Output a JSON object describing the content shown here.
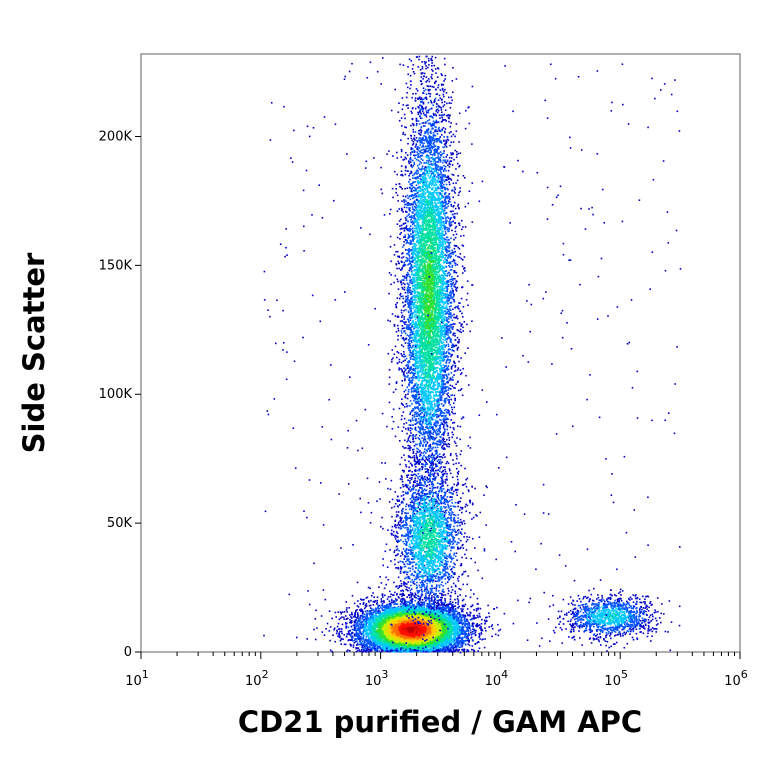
{
  "chart_data": {
    "type": "scatter",
    "subtype": "flow-cytometry-density-dot-plot",
    "xlabel": "CD21 purified / GAM APC",
    "ylabel": "Side Scatter",
    "x_scale": "log",
    "xlim": [
      10,
      1000000
    ],
    "ylim": [
      0,
      232000
    ],
    "x_ticks": [
      {
        "value": 10,
        "base": "10",
        "exp": "1"
      },
      {
        "value": 100,
        "base": "10",
        "exp": "2"
      },
      {
        "value": 1000,
        "base": "10",
        "exp": "3"
      },
      {
        "value": 10000,
        "base": "10",
        "exp": "4"
      },
      {
        "value": 100000,
        "base": "10",
        "exp": "5"
      },
      {
        "value": 1000000,
        "base": "10",
        "exp": "6"
      }
    ],
    "y_ticks": [
      {
        "value": 0,
        "label": "0"
      },
      {
        "value": 50000,
        "label": "50K"
      },
      {
        "value": 100000,
        "label": "100K"
      },
      {
        "value": 150000,
        "label": "150K"
      },
      {
        "value": 200000,
        "label": "200K"
      }
    ],
    "grid": false,
    "legend": "none",
    "colormap": [
      "#0000c8",
      "#0050ff",
      "#00c8ff",
      "#00e0a0",
      "#30e030",
      "#c8f000",
      "#ffd000",
      "#ff7000",
      "#ff1000",
      "#c00000"
    ],
    "populations": [
      {
        "name": "",
        "x_center": 1800,
        "y_center": 9000,
        "x_spread_decades": 0.22,
        "y_spread": 5000,
        "count": 9000,
        "density": 1.0
      },
      {
        "name": "",
        "x_center": 2500,
        "y_center": 140000,
        "x_spread_decades": 0.11,
        "y_spread": 38000,
        "count": 8000,
        "density": 0.45
      },
      {
        "name": "",
        "x_center": 2500,
        "y_center": 45000,
        "x_spread_decades": 0.14,
        "y_spread": 14000,
        "count": 2500,
        "density": 0.35
      },
      {
        "name": "",
        "x_center": 80000,
        "y_center": 14000,
        "x_spread_decades": 0.18,
        "y_spread": 4000,
        "count": 1200,
        "density": 0.3
      }
    ]
  }
}
